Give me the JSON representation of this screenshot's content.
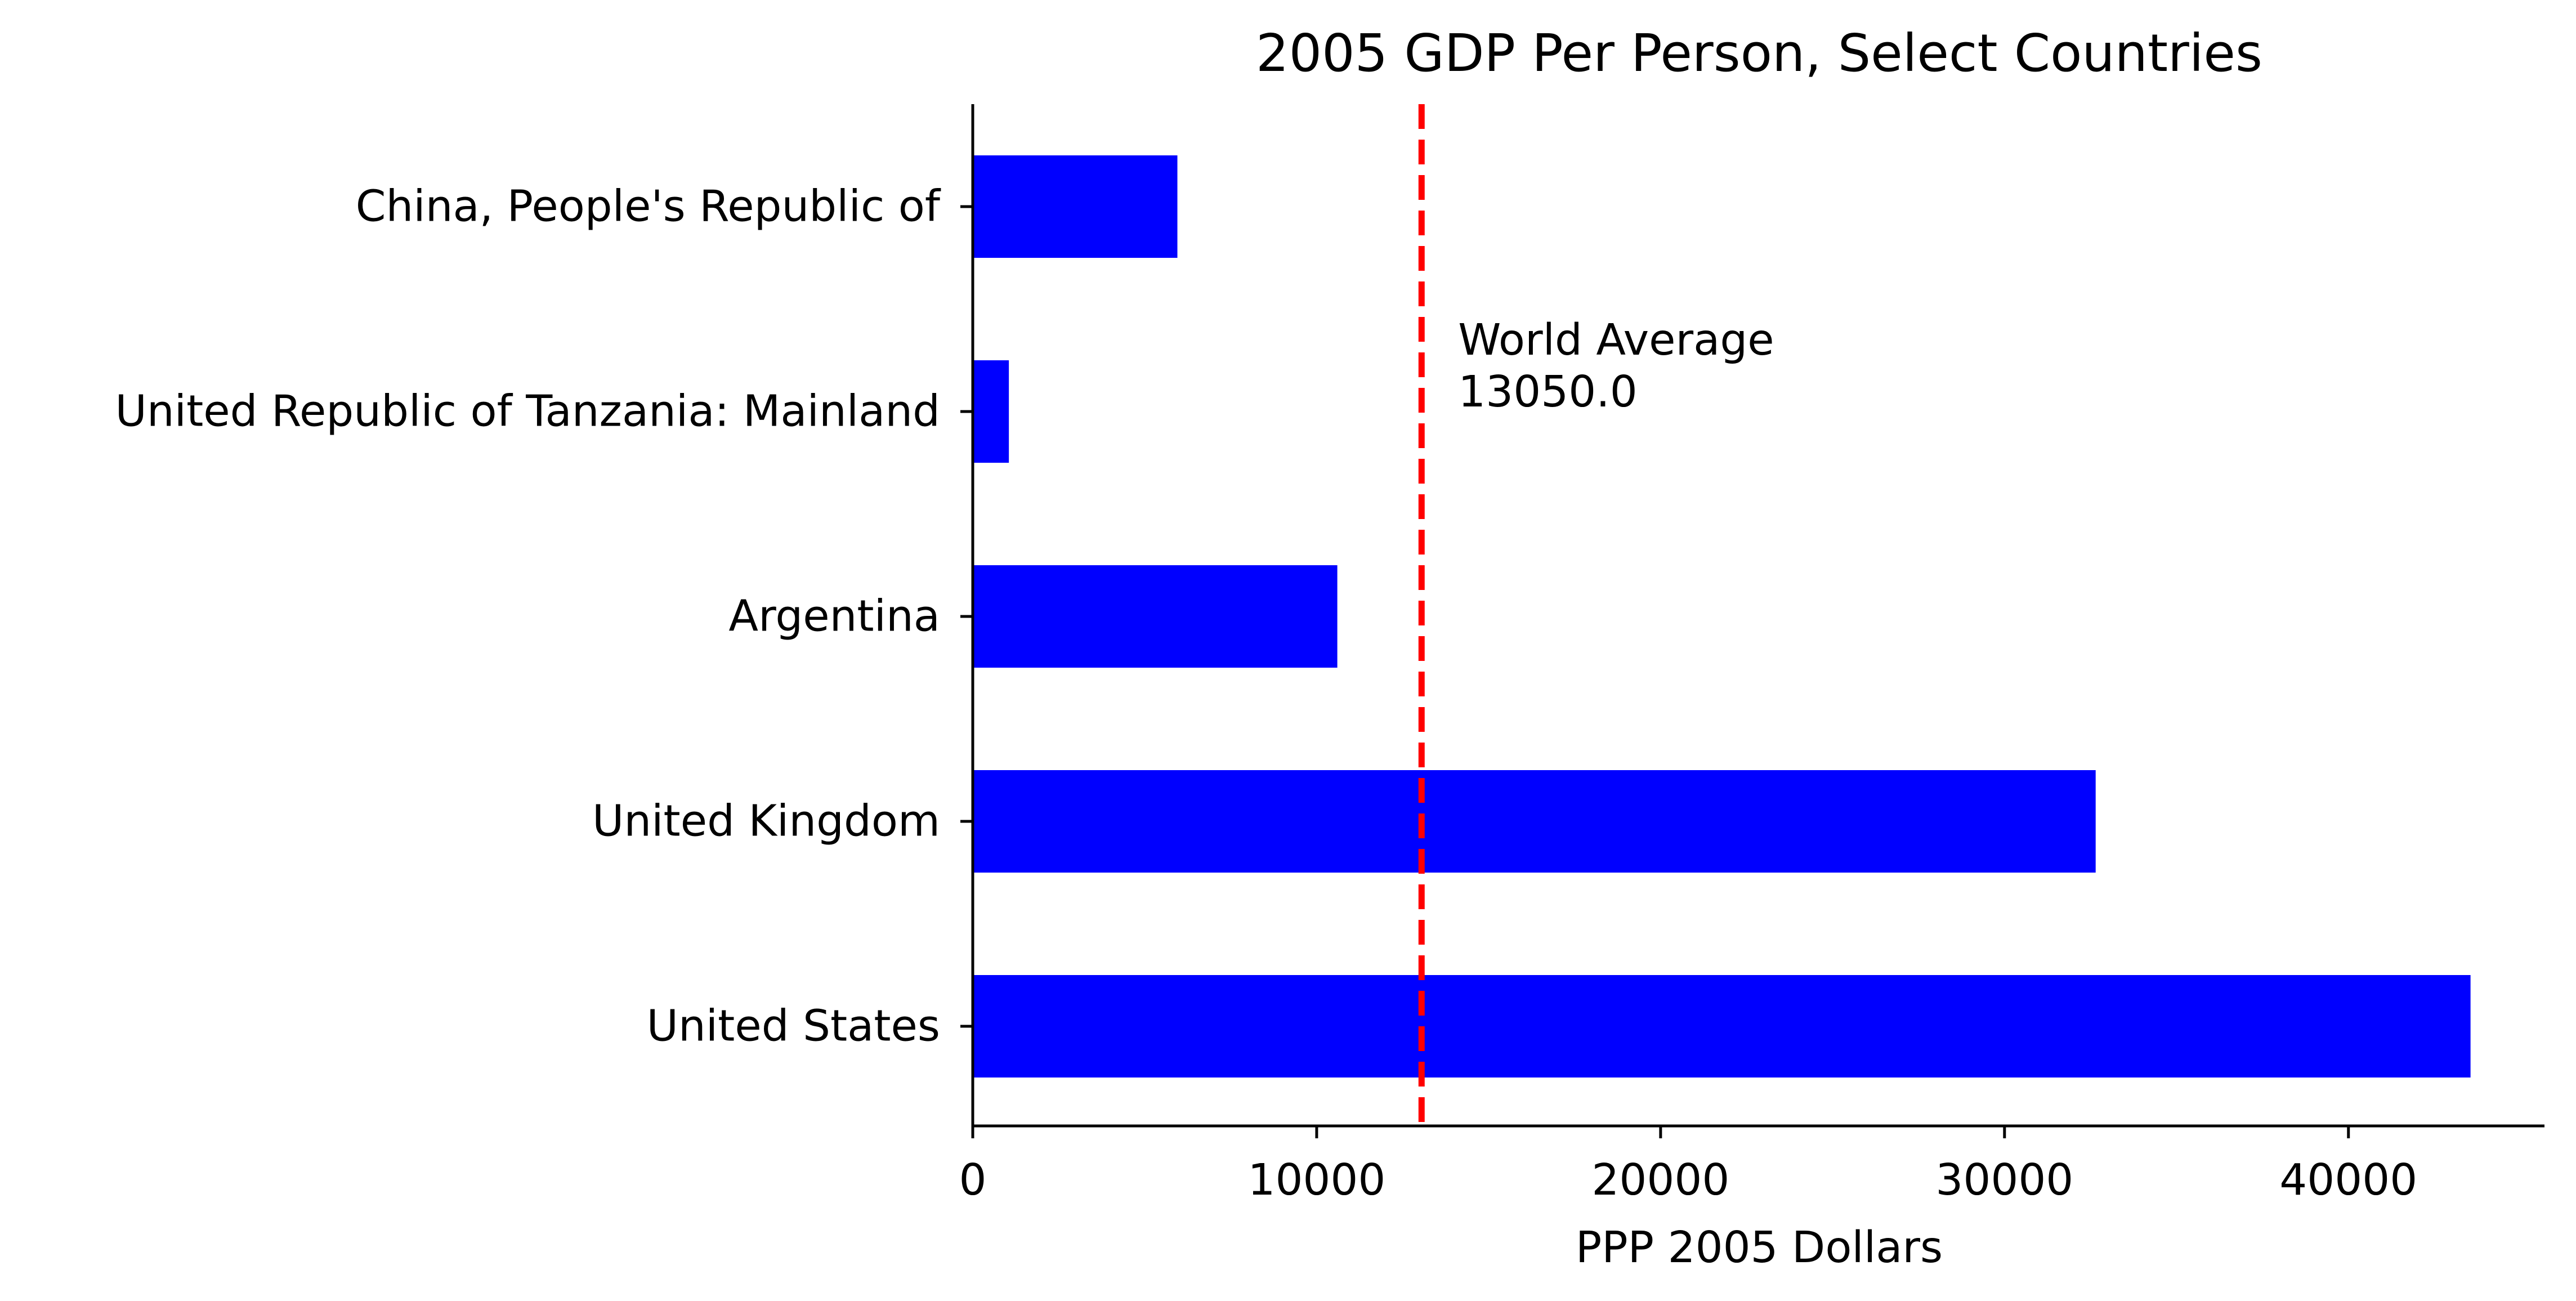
{
  "chart_data": {
    "type": "bar",
    "orientation": "horizontal",
    "title": "2005 GDP Per Person, Select Countries",
    "xlabel": "PPP 2005 Dollars",
    "ylabel": "",
    "xlim": [
      0,
      45700
    ],
    "x_ticks": [
      0,
      10000,
      20000,
      30000,
      40000
    ],
    "x_tick_labels": [
      "0",
      "10000",
      "20000",
      "30000",
      "40000"
    ],
    "categories": [
      "China, People's Republic of",
      "United Republic of Tanzania: Mainland",
      "Argentina",
      "United Kingdom",
      "United States"
    ],
    "values": [
      5950,
      1050,
      10600,
      32650,
      43550
    ],
    "bar_color": "#0000ff",
    "reference_line": {
      "value": 13050,
      "style": "dashed",
      "color": "#ff0000",
      "annotation_lines": [
        "World Average",
        "13050.0"
      ]
    },
    "grid": false,
    "legend": "none"
  }
}
